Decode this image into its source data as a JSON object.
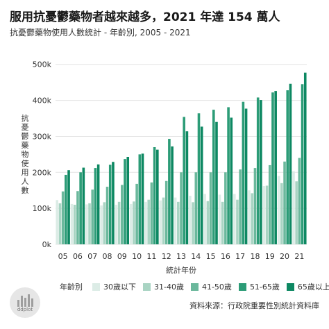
{
  "title": "服用抗憂鬱藥物者越來越多，2021 年達 154 萬人",
  "subtitle": "抗憂鬱藥物使用人數統計 - 年齡別, 2005 - 2021",
  "source": "資料來源：行政院重要性別統計資料庫",
  "logo_text": "ddplot",
  "colors": {
    "background": "#ffffff",
    "grid": "#e3e3e3",
    "logo_circle": "#e6e6e6"
  },
  "chart_data": {
    "type": "bar",
    "categories": [
      "05",
      "06",
      "07",
      "08",
      "09",
      "10",
      "11",
      "12",
      "13",
      "14",
      "15",
      "16",
      "17",
      "18",
      "19",
      "20",
      "21"
    ],
    "xlabel": "統計年份",
    "ylabel": "抗憂鬱藥物使用人數",
    "ylim": [
      0,
      540000
    ],
    "yticks": [
      0,
      100000,
      200000,
      300000,
      400000,
      500000
    ],
    "ytick_labels": [
      "0k",
      "100k",
      "200k",
      "300k",
      "400k",
      "500k"
    ],
    "grid": true,
    "legend_title": "年齡別",
    "legend_position": "bottom",
    "series": [
      {
        "name": "30歲以下",
        "color": "#dcece6",
        "values": [
          123000,
          112000,
          111000,
          108000,
          110000,
          112000,
          118000,
          122000,
          130000,
          135000,
          140000,
          138000,
          140000,
          150000,
          162000,
          190000,
          203000
        ]
      },
      {
        "name": "31-40歲",
        "color": "#a9d4c3",
        "values": [
          114000,
          110000,
          114000,
          117000,
          118000,
          119000,
          124000,
          130000,
          118000,
          117000,
          120000,
          118000,
          124000,
          142000,
          163000,
          170000,
          175000
        ]
      },
      {
        "name": "41-50歲",
        "color": "#6bb89c",
        "values": [
          147000,
          148000,
          152000,
          160000,
          165000,
          168000,
          172000,
          176000,
          200000,
          200000,
          200000,
          200000,
          208000,
          212000,
          220000,
          230000,
          240000
        ]
      },
      {
        "name": "51-65歲",
        "color": "#2c9c77",
        "values": [
          193000,
          200000,
          212000,
          221000,
          237000,
          250000,
          270000,
          293000,
          354000,
          364000,
          374000,
          381000,
          396000,
          408000,
          422000,
          428000,
          445000
        ]
      },
      {
        "name": "65歲以上",
        "color": "#0d8862",
        "values": [
          206000,
          213000,
          222000,
          229000,
          243000,
          252000,
          263000,
          272000,
          314000,
          327000,
          340000,
          352000,
          377000,
          401000,
          426000,
          446000,
          477000
        ]
      }
    ]
  }
}
